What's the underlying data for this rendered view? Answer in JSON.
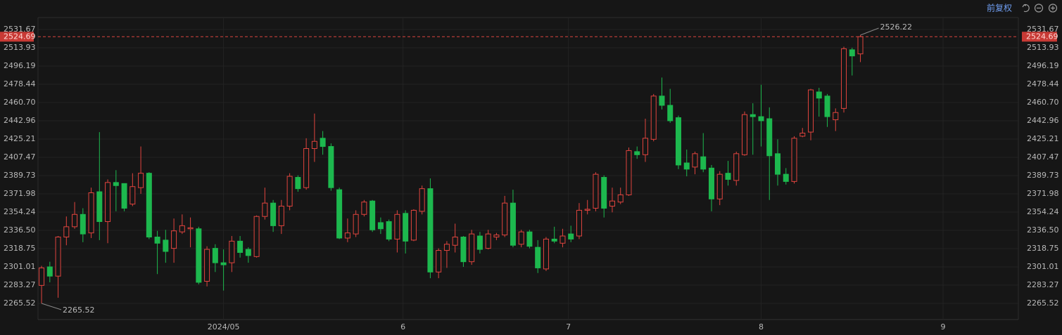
{
  "toolbar": {
    "label": "前复权"
  },
  "chart_data": {
    "type": "candlestick",
    "up_color": "#e0443e",
    "down_color": "#1db84e",
    "open": [
      2283,
      2301,
      2292,
      2330,
      2340,
      2352,
      2334,
      2374,
      2345,
      2383,
      2382,
      2362,
      2378,
      2392,
      2330,
      2327,
      2319,
      2335,
      2338,
      2338,
      2287,
      2319,
      2305,
      2305,
      2326,
      2318,
      2311,
      2350,
      2363,
      2341,
      2360,
      2388,
      2378,
      2416,
      2426,
      2418,
      2376,
      2329,
      2333,
      2352,
      2365,
      2344,
      2345,
      2328,
      2353,
      2327,
      2355,
      2377,
      2296,
      2317,
      2322,
      2330,
      2306,
      2331,
      2319,
      2330,
      2332,
      2363,
      2323,
      2335,
      2320,
      2299,
      2328,
      2324,
      2333,
      2331,
      2356,
      2358,
      2388,
      2360,
      2364,
      2371,
      2413,
      2410,
      2425,
      2467,
      2458,
      2446,
      2402,
      2398,
      2408,
      2397,
      2367,
      2392,
      2385,
      2410,
      2449,
      2447,
      2445,
      2411,
      2391,
      2384,
      2428,
      2432,
      2471,
      2467,
      2444,
      2455,
      2512,
      2508
    ],
    "high": [
      2302,
      2306,
      2331,
      2350,
      2364,
      2358,
      2378,
      2432,
      2386,
      2395,
      2382,
      2392,
      2418,
      2393,
      2336,
      2337,
      2348,
      2352,
      2349,
      2340,
      2321,
      2323,
      2318,
      2331,
      2331,
      2320,
      2351,
      2378,
      2366,
      2366,
      2392,
      2390,
      2426,
      2450,
      2433,
      2421,
      2378,
      2348,
      2356,
      2366,
      2366,
      2349,
      2347,
      2356,
      2356,
      2357,
      2380,
      2387,
      2319,
      2326,
      2343,
      2331,
      2337,
      2335,
      2337,
      2334,
      2370,
      2376,
      2337,
      2337,
      2327,
      2330,
      2340,
      2338,
      2341,
      2363,
      2366,
      2393,
      2390,
      2378,
      2378,
      2417,
      2418,
      2445,
      2469,
      2485,
      2474,
      2448,
      2415,
      2413,
      2431,
      2400,
      2394,
      2404,
      2413,
      2452,
      2460,
      2478,
      2456,
      2425,
      2397,
      2428,
      2436,
      2474,
      2475,
      2469,
      2455,
      2515,
      2514,
      2526.22
    ],
    "low": [
      2265.52,
      2286,
      2271,
      2322,
      2338,
      2325,
      2329,
      2327,
      2324,
      2355,
      2355,
      2360,
      2372,
      2328,
      2294,
      2305,
      2305,
      2333,
      2320,
      2284,
      2282,
      2296,
      2278,
      2296,
      2310,
      2305,
      2310,
      2347,
      2335,
      2333,
      2356,
      2374,
      2376,
      2403,
      2410,
      2375,
      2328,
      2325,
      2330,
      2350,
      2335,
      2333,
      2326,
      2315,
      2314,
      2326,
      2352,
      2290,
      2290,
      2300,
      2315,
      2301,
      2303,
      2314,
      2318,
      2327,
      2330,
      2320,
      2320,
      2319,
      2295,
      2297,
      2324,
      2320,
      2325,
      2328,
      2352,
      2355,
      2349,
      2354,
      2362,
      2370,
      2406,
      2403,
      2423,
      2454,
      2441,
      2396,
      2389,
      2391,
      2393,
      2355,
      2361,
      2380,
      2380,
      2409,
      2410,
      2418,
      2366,
      2380,
      2381,
      2382,
      2427,
      2424,
      2447,
      2437,
      2433,
      2451,
      2487,
      2500
    ],
    "close": [
      2300,
      2292,
      2330,
      2340,
      2352,
      2333,
      2373,
      2345,
      2383,
      2380,
      2358,
      2379,
      2392,
      2330,
      2324,
      2316,
      2336,
      2341,
      2339,
      2286,
      2318,
      2305,
      2303,
      2326,
      2315,
      2312,
      2350,
      2363,
      2341,
      2360,
      2389,
      2377,
      2416,
      2423,
      2418,
      2378,
      2329,
      2334,
      2352,
      2364,
      2337,
      2338,
      2328,
      2352,
      2326,
      2356,
      2377,
      2296,
      2317,
      2323,
      2330,
      2306,
      2333,
      2318,
      2333,
      2332,
      2363,
      2322,
      2335,
      2321,
      2300,
      2328,
      2326,
      2331,
      2328,
      2356,
      2357,
      2391,
      2358,
      2365,
      2371,
      2414,
      2410,
      2426,
      2467,
      2458,
      2443,
      2400,
      2396,
      2411,
      2396,
      2367,
      2391,
      2386,
      2411,
      2449,
      2447,
      2443,
      2409,
      2391,
      2384,
      2426,
      2431,
      2473,
      2465,
      2447,
      2451,
      2513,
      2506,
      2524.69
    ],
    "xlim": [
      -0.43,
      118.1
    ],
    "xticks": [
      {
        "value": 22,
        "label": "2024/05"
      },
      {
        "value": 43.7,
        "label": "6"
      },
      {
        "value": 63.7,
        "label": "7"
      },
      {
        "value": 87,
        "label": "8"
      },
      {
        "value": 109,
        "label": "9"
      }
    ],
    "ylim": [
      2249.8,
      2543.3
    ],
    "yticks": [
      2265.52,
      2283.27,
      2301.01,
      2318.75,
      {
        "value": 2336.5,
        "label": "2336.50"
      },
      2354.24,
      2371.98,
      2389.73,
      2407.47,
      2425.21,
      2442.96,
      {
        "value": 2460.7,
        "label": "2460.70"
      },
      2478.44,
      2496.19,
      2513.93,
      2531.67
    ],
    "grid": true
  }
}
